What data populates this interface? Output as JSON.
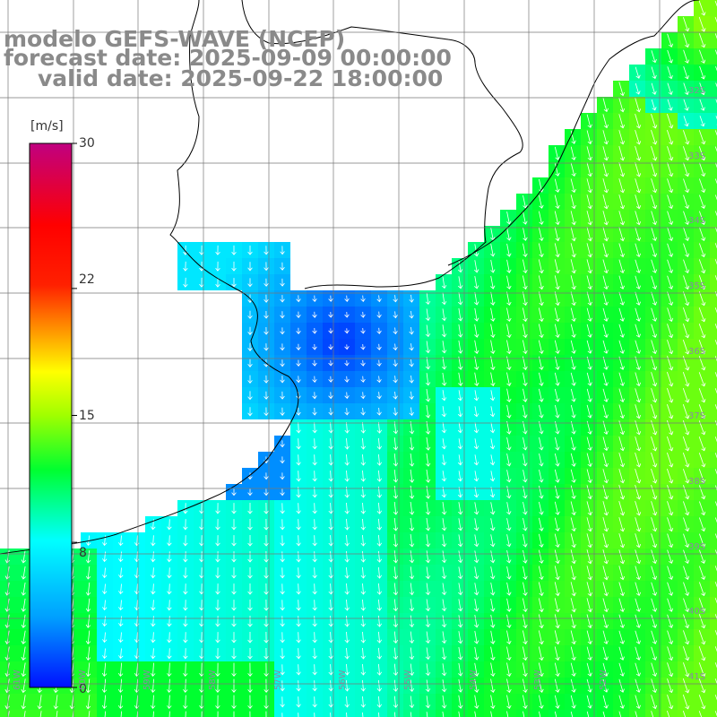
{
  "title": {
    "line1": "modelo GEFS-WAVE (NCEP)",
    "line2": "forecast date: 2025-09-09 00:00:00",
    "line3": "valid date: 2025-09-22 18:00:00"
  },
  "colorbar": {
    "unit": "[m/s]",
    "ticks": [
      "30",
      "22",
      "15",
      "8",
      "0"
    ],
    "tick_values": [
      30,
      22,
      15,
      8,
      0
    ],
    "range": [
      0,
      30
    ],
    "colors": [
      "#0010ff",
      "#00a0ff",
      "#00ffff",
      "#00ff30",
      "#a0ff00",
      "#ffff00",
      "#ff9000",
      "#ff2000",
      "#ff0000",
      "#e00060",
      "#c00080"
    ]
  },
  "latitude_labels": [
    "32S",
    "33S",
    "34S",
    "35S",
    "36S",
    "37S",
    "38S",
    "39S",
    "40S",
    "41S"
  ],
  "longitude_labels": [
    "61W",
    "60W",
    "59W",
    "58W",
    "57W",
    "56W",
    "55W",
    "54W",
    "53W",
    "52W"
  ],
  "legend_position": "left",
  "arrow_color": "#ffffff",
  "land_color": "#ffffff",
  "coast_color": "#000000",
  "grid_color": "#777777"
}
